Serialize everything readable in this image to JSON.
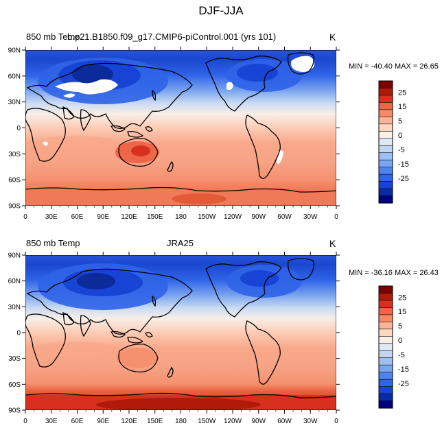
{
  "figure": {
    "title": "DJF-JJA"
  },
  "panels": [
    {
      "left_title": "850 mb Temp",
      "center_title": "b.e21.B1850.f09_g17.CMIP6-piControl.001 (yrs 101)",
      "units": "K",
      "minmax": "MIN = -40.40  MAX =  26.65"
    },
    {
      "left_title": "850 mb Temp",
      "center_title": "JRA25",
      "units": "K",
      "minmax": "MIN = -36.16  MAX =  26.43"
    }
  ],
  "axes": {
    "lat_labels": [
      "90N",
      "60N",
      "30N",
      "0",
      "30S",
      "60S",
      "90S"
    ],
    "lon_labels": [
      "0",
      "30E",
      "60E",
      "90E",
      "120E",
      "150E",
      "180",
      "150W",
      "120W",
      "90W",
      "60W",
      "30W",
      "0"
    ]
  },
  "colorbar": {
    "tick_labels": [
      "25",
      "15",
      "5",
      "0",
      "-5",
      "-15",
      "-25"
    ],
    "colors": [
      "#7f0000",
      "#b01a0a",
      "#d7301f",
      "#ef6548",
      "#f68a64",
      "#fbb596",
      "#fdd7c2",
      "#fbeee6",
      "#dfe9f6",
      "#c2d6f1",
      "#9ebff0",
      "#7aa5ef",
      "#4f83ee",
      "#2f63e8",
      "#1744d4",
      "#0a2aa8",
      "#000080"
    ]
  },
  "field_colors": {
    "warm_strong": "#f07a57",
    "warm": "#f9a88a",
    "warm_light": "#fcccb5",
    "neutral": "#f8eee8",
    "cool_light": "#c9daf3",
    "cool": "#8fb2ef",
    "cool_strong": "#3f74ec",
    "cold": "#1a47cf",
    "coldest": "#0c2a99",
    "missing": "#ffffff"
  }
}
